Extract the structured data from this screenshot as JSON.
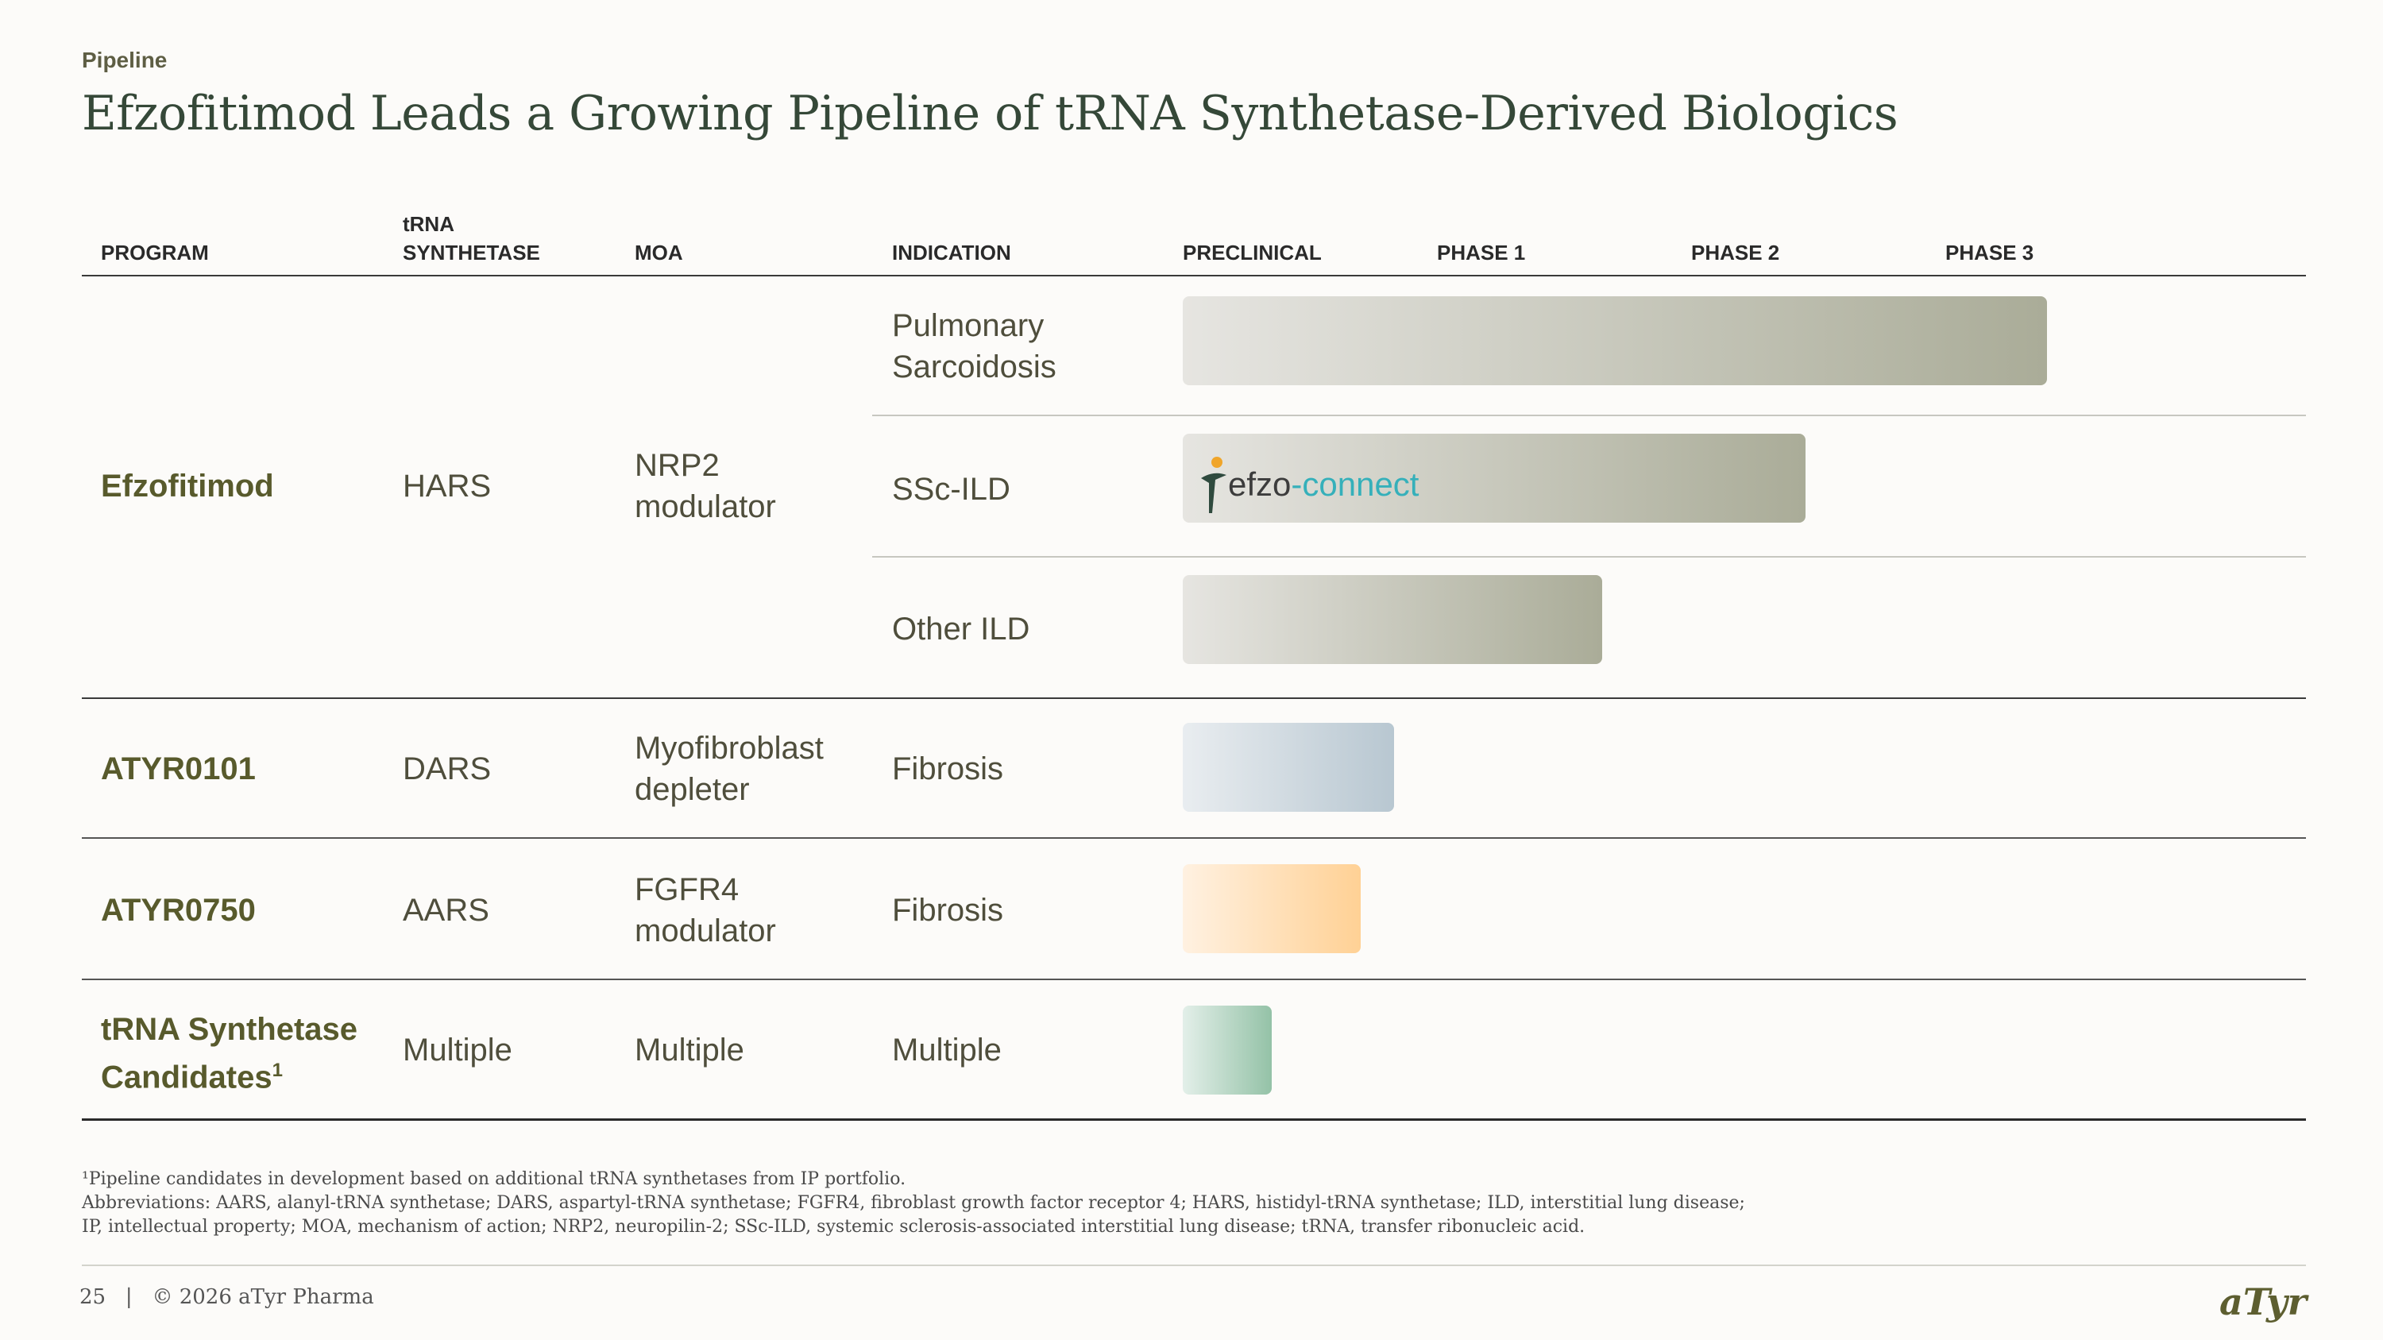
{
  "section_label": "Pipeline",
  "title": "Efzofitimod Leads a Growing Pipeline of tRNA Synthetase-Derived Biologics",
  "headers": {
    "program": "PROGRAM",
    "synthetase_line1": "tRNA",
    "synthetase_line2": "SYNTHETASE",
    "moa": "MOA",
    "indication": "INDICATION",
    "preclinical": "PRECLINICAL",
    "phase1": "PHASE 1",
    "phase2": "PHASE 2",
    "phase3": "PHASE 3"
  },
  "rows": [
    {
      "program": "Efzofitimod",
      "synthetase": "HARS",
      "moa_line1": "NRP2",
      "moa_line2": "modulator",
      "indications": [
        {
          "line1": "Pulmonary",
          "line2": "Sarcoidosis",
          "progress_phase": 3.4,
          "color": "#aaac98"
        },
        {
          "line1": "SSc-ILD",
          "progress_phase": 2.45,
          "color": "#aaac98",
          "badge": {
            "part1": "efzo",
            "part2": "-connect"
          }
        },
        {
          "line1": "Other ILD",
          "progress_phase": 1.65,
          "color": "#aaac98"
        }
      ]
    },
    {
      "program": "ATYR0101",
      "synthetase": "DARS",
      "moa_line1": "Myofibroblast",
      "moa_line2": "depleter",
      "indication": "Fibrosis",
      "progress_phase": 0.83,
      "color": "#b8c7d1"
    },
    {
      "program": "ATYR0750",
      "synthetase": "AARS",
      "moa_line1": "FGFR4",
      "moa_line2": "modulator",
      "indication": "Fibrosis",
      "progress_phase": 0.7,
      "color": "#ffd195"
    },
    {
      "program_line1": "tRNA Synthetase",
      "program_line2": "Candidates",
      "program_sup": "1",
      "synthetase": "Multiple",
      "moa": "Multiple",
      "indication": "Multiple",
      "progress_phase": 0.35,
      "color": "#94c2a7"
    }
  ],
  "footnotes": {
    "note1": "¹Pipeline candidates in development based on additional tRNA synthetases from IP portfolio.",
    "abbrev1": "Abbreviations: AARS, alanyl-tRNA synthetase; DARS, aspartyl-tRNA synthetase; FGFR4, fibroblast growth factor receptor 4; HARS, histidyl-tRNA synthetase; ILD, interstitial lung disease;",
    "abbrev2": "IP, intellectual property; MOA, mechanism of action; NRP2, neuropilin-2; SSc-ILD, systemic sclerosis-associated interstitial lung disease; tRNA, transfer ribonucleic acid."
  },
  "footer": {
    "page": "25",
    "separator": "|",
    "copyright": "© 2026 aTyr Pharma",
    "brand": "aTyr"
  }
}
